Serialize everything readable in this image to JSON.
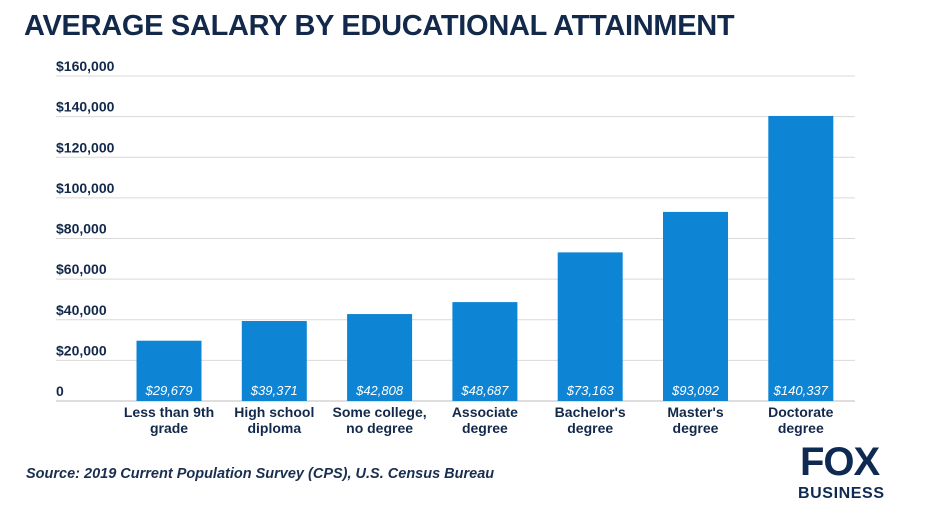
{
  "chart_data": {
    "type": "bar",
    "title": "AVERAGE SALARY BY EDUCATIONAL ATTAINMENT",
    "categories": [
      [
        "Less than 9th",
        "grade"
      ],
      [
        "High school",
        "diploma"
      ],
      [
        "Some college,",
        "no degree"
      ],
      [
        "Associate",
        "degree"
      ],
      [
        "Bachelor's",
        "degree"
      ],
      [
        "Master's",
        "degree"
      ],
      [
        "Doctorate",
        "degree"
      ]
    ],
    "values": [
      29679,
      39371,
      42808,
      48687,
      73163,
      93092,
      140337
    ],
    "value_labels": [
      "$29,679",
      "$39,371",
      "$42,808",
      "$48,687",
      "$73,163",
      "$93,092",
      "$140,337"
    ],
    "y_ticks": [
      "0",
      "$20,000",
      "$40,000",
      "$60,000",
      "$80,000",
      "$100,000",
      "$120,000",
      "$140,000",
      "$160,000"
    ],
    "ylim": [
      0,
      160000
    ],
    "xlabel": "",
    "ylabel": "",
    "grid": true,
    "legend": "none",
    "bar_color": "#0d84d4"
  },
  "source": "Source: 2019 Current Population Survey (CPS), U.S. Census Bureau",
  "logo": {
    "top": "FOX",
    "bottom": "BUSINESS"
  }
}
